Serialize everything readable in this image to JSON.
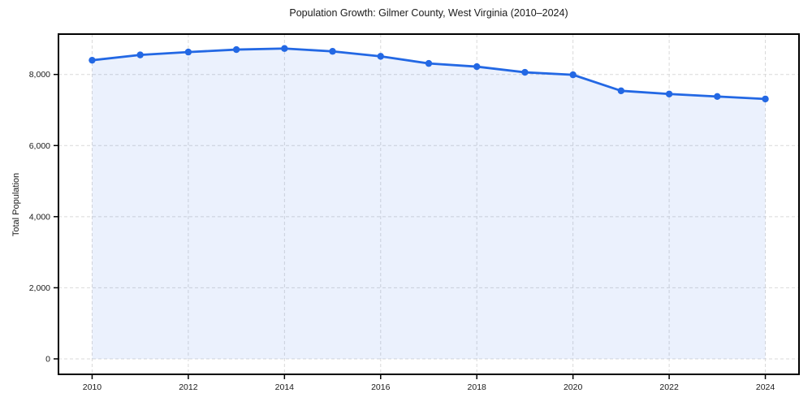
{
  "chart_data": {
    "type": "line",
    "title": "Population Growth: Gilmer County, West Virginia (2010–2024)",
    "xlabel": "",
    "ylabel": "Total Population",
    "x": [
      2010,
      2011,
      2012,
      2013,
      2014,
      2015,
      2016,
      2017,
      2018,
      2019,
      2020,
      2021,
      2022,
      2023,
      2024
    ],
    "series": [
      {
        "name": "Total Population",
        "values": [
          8400,
          8550,
          8630,
          8700,
          8730,
          8650,
          8510,
          8310,
          8220,
          8060,
          7990,
          7540,
          7450,
          7380,
          7310
        ]
      }
    ],
    "x_ticks": [
      2010,
      2012,
      2014,
      2016,
      2018,
      2020,
      2022,
      2024
    ],
    "x_tick_labels": [
      "2010",
      "2012",
      "2014",
      "2016",
      "2018",
      "2020",
      "2022",
      "2024"
    ],
    "y_ticks": [
      0,
      2000,
      4000,
      6000,
      8000
    ],
    "y_tick_labels": [
      "0",
      "2,000",
      "4,000",
      "6,000",
      "8,000"
    ],
    "xlim": [
      2009.3,
      2024.7
    ],
    "ylim": [
      -435,
      9135
    ],
    "grid": true,
    "grid_style": "dashed",
    "legend": "none",
    "marker": "circle",
    "area_fill_to_zero": true,
    "line_color": "#2368e4",
    "fill_color": "rgba(35,104,228,0.09)",
    "grid_color": "#d9d9d9",
    "axis_color": "#000000",
    "text_color": "#1a1a1a"
  }
}
